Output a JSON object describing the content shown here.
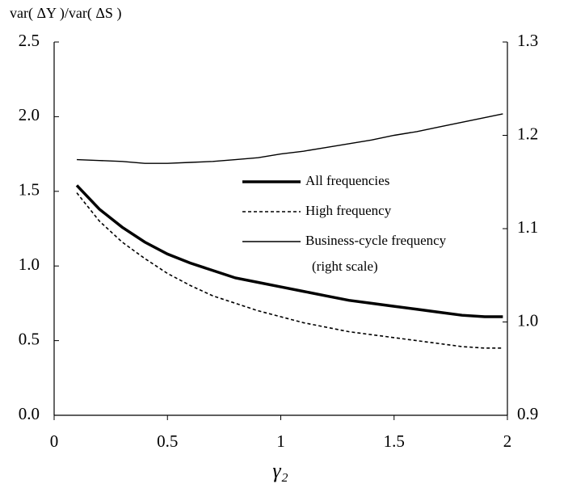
{
  "chart_data": {
    "type": "line",
    "y_label": "var( ΔY )/var( ΔS )",
    "x_label": "γ₂",
    "annotation": "(right scale)",
    "x": [
      0.1,
      0.2,
      0.3,
      0.4,
      0.5,
      0.6,
      0.7,
      0.8,
      0.9,
      1.0,
      1.1,
      1.2,
      1.3,
      1.4,
      1.5,
      1.6,
      1.7,
      1.8,
      1.9,
      1.98
    ],
    "series": [
      {
        "name": "All frequencies",
        "color": "#000000",
        "style": "thick",
        "values": [
          1.54,
          1.38,
          1.26,
          1.16,
          1.08,
          1.02,
          0.97,
          0.92,
          0.89,
          0.86,
          0.83,
          0.8,
          0.77,
          0.75,
          0.73,
          0.71,
          0.69,
          0.67,
          0.66,
          0.66
        ]
      },
      {
        "name": "High frequency",
        "color": "#000000",
        "style": "dashed",
        "values": [
          1.49,
          1.3,
          1.16,
          1.05,
          0.95,
          0.87,
          0.8,
          0.75,
          0.7,
          0.66,
          0.62,
          0.59,
          0.56,
          0.54,
          0.52,
          0.5,
          0.48,
          0.46,
          0.45,
          0.45
        ]
      },
      {
        "name": "Business-cycle frequency",
        "color": "#000000",
        "style": "thin",
        "axis": "y2",
        "values": [
          1.174,
          1.173,
          1.172,
          1.17,
          1.17,
          1.171,
          1.172,
          1.174,
          1.176,
          1.18,
          1.183,
          1.187,
          1.191,
          1.195,
          1.2,
          1.204,
          1.209,
          1.214,
          1.219,
          1.223
        ]
      }
    ],
    "xlim": [
      0,
      2
    ],
    "xticks": [
      0,
      0.5,
      1,
      1.5,
      2
    ],
    "ylim": [
      0,
      2.5
    ],
    "yticks": [
      {
        "value": 0,
        "label": "0.0"
      },
      0.5,
      {
        "value": 1,
        "label": "1.0"
      },
      1.5,
      {
        "value": 2,
        "label": "2.0"
      },
      2.5
    ],
    "y2lim": [
      0.9,
      1.3
    ],
    "y2ticks": [
      0.9,
      {
        "value": 1.0,
        "label": "1.0"
      },
      1.1,
      1.2,
      1.3
    ],
    "grid": false
  }
}
